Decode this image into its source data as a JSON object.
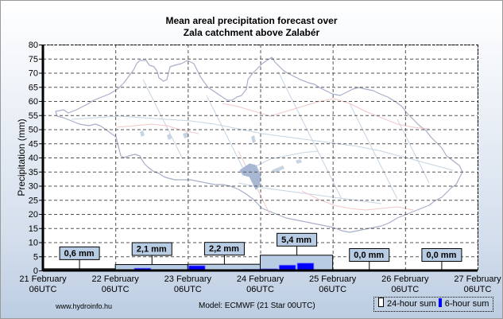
{
  "chart_data": {
    "type": "bar",
    "title": "Mean areal precipitation forecast over\nZala catchment above Zalabér",
    "title_lines": [
      "Mean areal precipitation forecast over",
      "Zala catchment above Zalabér"
    ],
    "xlabel": "",
    "ylabel": "Precipitation (mm)",
    "ylim": [
      0,
      80
    ],
    "y_ticks": [
      0,
      5,
      10,
      15,
      20,
      25,
      30,
      35,
      40,
      45,
      50,
      55,
      60,
      65,
      70,
      75,
      80
    ],
    "x_ticks": [
      {
        "line1": "21 February",
        "line2": "06UTC"
      },
      {
        "line1": "22 February",
        "line2": "06UTC"
      },
      {
        "line1": "23 February",
        "line2": "06UTC"
      },
      {
        "line1": "24 February",
        "line2": "06UTC"
      },
      {
        "line1": "25 February",
        "line2": "06UTC"
      },
      {
        "line1": "26 February",
        "line2": "06UTC"
      },
      {
        "line1": "27 February",
        "line2": "06UTC"
      }
    ],
    "grid": true,
    "series": [
      {
        "name": "24-hour sum",
        "color": "#b8cce4",
        "values": [
          0.6,
          2.1,
          2.2,
          5.4,
          0.0,
          0.0
        ],
        "labels": [
          "0,6 mm",
          "2,1 mm",
          "2,2 mm",
          "5,4 mm",
          "0,0 mm",
          "0,0 mm"
        ]
      },
      {
        "name": "6-hour sum",
        "color": "#0000ff",
        "values": [
          0.0,
          0.0,
          0.0,
          0.0,
          0.3,
          0.8,
          0.2,
          0.0,
          1.7,
          0.1,
          0.0,
          0.4,
          0.6,
          1.9,
          2.6,
          0.2,
          0.0,
          0.0,
          0.0,
          0.0,
          0.0,
          0.0,
          0.0,
          0.0
        ]
      }
    ],
    "legend_position": "bottom-right"
  },
  "footer": {
    "url": "www.hydroinfo.hu",
    "model": "Model: ECMWF (21  Star 00UTC)"
  },
  "legend": {
    "item_24h": "24-hour sum",
    "item_6h": "6-hour sum"
  }
}
